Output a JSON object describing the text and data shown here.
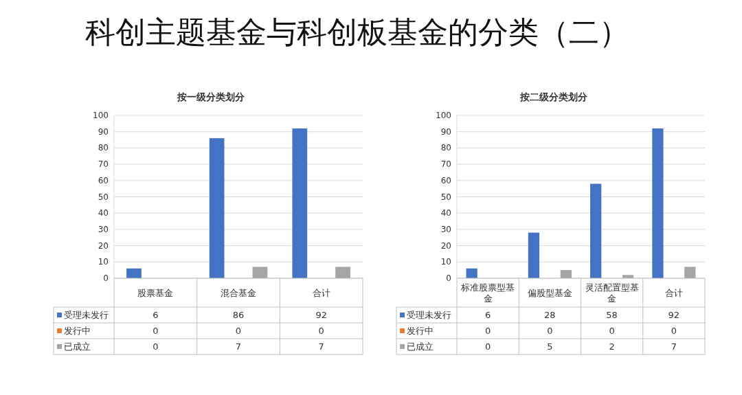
{
  "chart_data": [
    {
      "type": "bar",
      "title": "科创主题基金与科创板基金的分类（二）",
      "subtitle": "按一级分类划分",
      "categories": [
        "股票基金",
        "混合基金",
        "合计"
      ],
      "series": [
        {
          "name": "受理未发行",
          "color": "#4472c4",
          "values": [
            6,
            86,
            92
          ]
        },
        {
          "name": "发行中",
          "color": "#ed7d31",
          "values": [
            0,
            0,
            0
          ]
        },
        {
          "name": "已成立",
          "color": "#a5a5a5",
          "values": [
            0,
            7,
            7
          ]
        }
      ],
      "ylim": [
        0,
        100
      ],
      "yticks": [
        0,
        10,
        20,
        30,
        40,
        50,
        60,
        70,
        80,
        90,
        100
      ],
      "grid": "y",
      "legend": "bottom",
      "data_labels": true
    },
    {
      "type": "bar",
      "subtitle": "按二级分类划分",
      "categories": [
        "标准股票型基金",
        "偏股型基金",
        "灵活配置型基金",
        "合计"
      ],
      "series": [
        {
          "name": "受理未发行",
          "color": "#4472c4",
          "values": [
            6,
            28,
            58,
            92
          ]
        },
        {
          "name": "发行中",
          "color": "#ed7d31",
          "values": [
            0,
            0,
            0,
            0
          ]
        },
        {
          "name": "已成立",
          "color": "#a5a5a5",
          "values": [
            0,
            5,
            2,
            7
          ]
        }
      ],
      "ylim": [
        0,
        100
      ],
      "yticks": [
        0,
        10,
        20,
        30,
        40,
        50,
        60,
        70,
        80,
        90,
        100
      ],
      "grid": "y",
      "legend": "bottom",
      "data_labels": true
    }
  ]
}
